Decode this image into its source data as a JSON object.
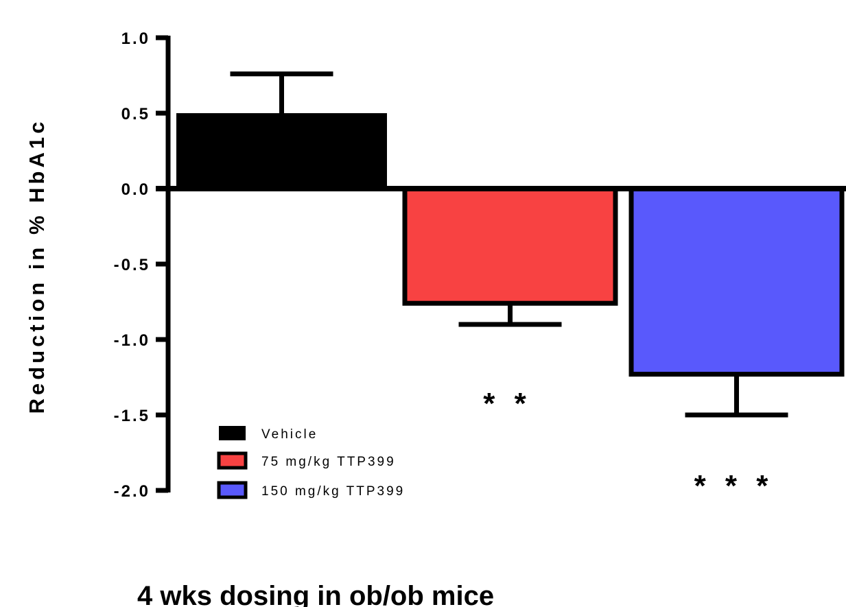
{
  "chart_data": {
    "type": "bar",
    "title": "",
    "xlabel": "",
    "ylabel": "Reduction in % HbA1c",
    "ylim": [
      -2.0,
      1.0
    ],
    "yticks": [
      "1.0",
      "0.5",
      "0.0",
      "-0.5",
      "-1.0",
      "-1.5",
      "-2.0"
    ],
    "ytick_values": [
      1.0,
      0.5,
      0.0,
      -0.5,
      -1.0,
      -1.5,
      -2.0
    ],
    "grid": false,
    "legend_placement": "bottom-left",
    "categories": [
      "Vehicle",
      "75 mg/kg TTP399",
      "150 mg/kg TTP399"
    ],
    "values": [
      0.5,
      -0.76,
      -1.23
    ],
    "errors": [
      0.26,
      0.14,
      0.27
    ],
    "error_direction": [
      "up",
      "down",
      "down"
    ],
    "colors": [
      "#000000",
      "#f84242",
      "#5959fc"
    ],
    "significance": [
      "",
      "**",
      "***"
    ]
  },
  "caption": "4 wks dosing in ob/ob mice"
}
